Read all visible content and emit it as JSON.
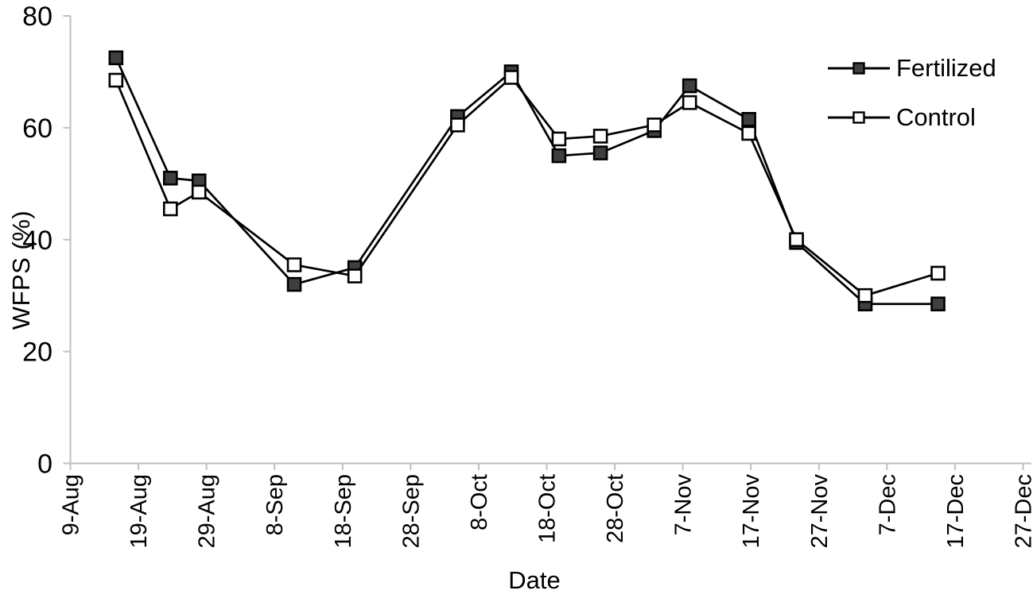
{
  "chart_data": {
    "type": "line",
    "xlabel": "Date",
    "ylabel": "WFPS (%)",
    "ylim": [
      0,
      80
    ],
    "y_ticks": [
      0,
      20,
      40,
      60,
      80
    ],
    "grid": false,
    "legend_position": "top-right",
    "x_axis": {
      "tick_labels": [
        "9-Aug",
        "19-Aug",
        "29-Aug",
        "8-Sep",
        "18-Sep",
        "28-Sep",
        "8-Oct",
        "18-Oct",
        "28-Oct",
        "7-Nov",
        "17-Nov",
        "27-Nov",
        "7-Dec",
        "17-Dec",
        "27-Dec"
      ],
      "tick_days": [
        0,
        10,
        20,
        30,
        40,
        50,
        60,
        70,
        80,
        90,
        100,
        110,
        120,
        130,
        140
      ]
    },
    "x_days": [
      6.7,
      14.7,
      18.9,
      32.9,
      41.8,
      56.9,
      64.8,
      71.8,
      77.9,
      85.8,
      91,
      99.7,
      106.7,
      116.8,
      127.5
    ],
    "x_dates_estimated": [
      "16-Aug",
      "24-Aug",
      "28-Aug",
      "11-Sep",
      "20-Sep",
      "5-Oct",
      "13-Oct",
      "20-Oct",
      "27-Oct",
      "3-Nov",
      "8-Nov",
      "17-Nov",
      "25-Nov",
      "4-Dec",
      "14-Dec"
    ],
    "series": [
      {
        "name": "Fertilized",
        "marker": "filled-square",
        "marker_fill": "#3f3f3f",
        "values": [
          72.5,
          51,
          50.5,
          32,
          35,
          62,
          70,
          55,
          55.5,
          59.5,
          67.5,
          61.5,
          39.5,
          28.5,
          28.5
        ]
      },
      {
        "name": "Control",
        "marker": "open-square",
        "marker_fill": "#ffffff",
        "values": [
          68.5,
          45.5,
          48.5,
          35.5,
          33.5,
          60.5,
          69,
          58,
          58.5,
          60.5,
          64.5,
          59,
          40,
          30,
          34
        ]
      }
    ],
    "colors": {
      "line": "#000000",
      "axis": "#bfbfbf",
      "text": "#000000",
      "background": "#ffffff"
    }
  }
}
